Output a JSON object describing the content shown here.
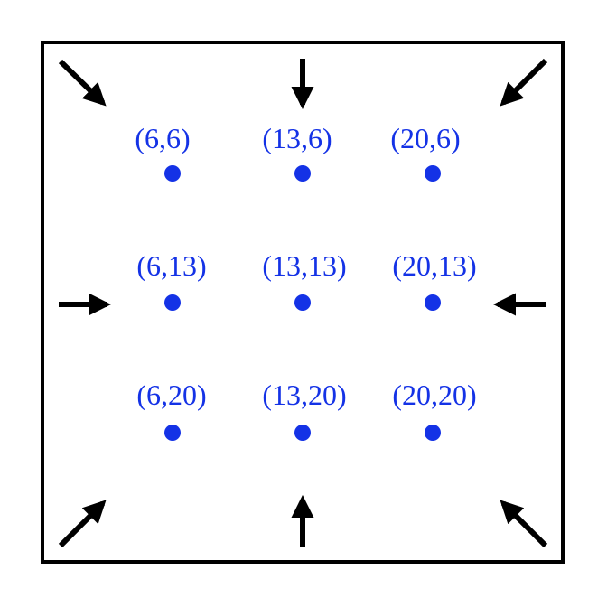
{
  "colors": {
    "points": "#1432e6",
    "arrows": "#000000",
    "frame": "#000000",
    "background": "#ffffff"
  },
  "points": [
    {
      "id": "p-6-6",
      "label": "(6,6)"
    },
    {
      "id": "p-13-6",
      "label": "(13,6)"
    },
    {
      "id": "p-20-6",
      "label": "(20,6)"
    },
    {
      "id": "p-6-13",
      "label": "(6,13)"
    },
    {
      "id": "p-13-13",
      "label": "(13,13)"
    },
    {
      "id": "p-20-13",
      "label": "(20,13)"
    },
    {
      "id": "p-6-20",
      "label": "(6,20)"
    },
    {
      "id": "p-13-20",
      "label": "(13,20)"
    },
    {
      "id": "p-20-20",
      "label": "(20,20)"
    }
  ],
  "arrows": [
    {
      "id": "top-left",
      "direction": "down-right"
    },
    {
      "id": "top",
      "direction": "down"
    },
    {
      "id": "top-right",
      "direction": "down-left"
    },
    {
      "id": "left",
      "direction": "right"
    },
    {
      "id": "right",
      "direction": "left"
    },
    {
      "id": "bottom-left",
      "direction": "up-right"
    },
    {
      "id": "bottom",
      "direction": "up"
    },
    {
      "id": "bottom-right",
      "direction": "up-left"
    }
  ]
}
